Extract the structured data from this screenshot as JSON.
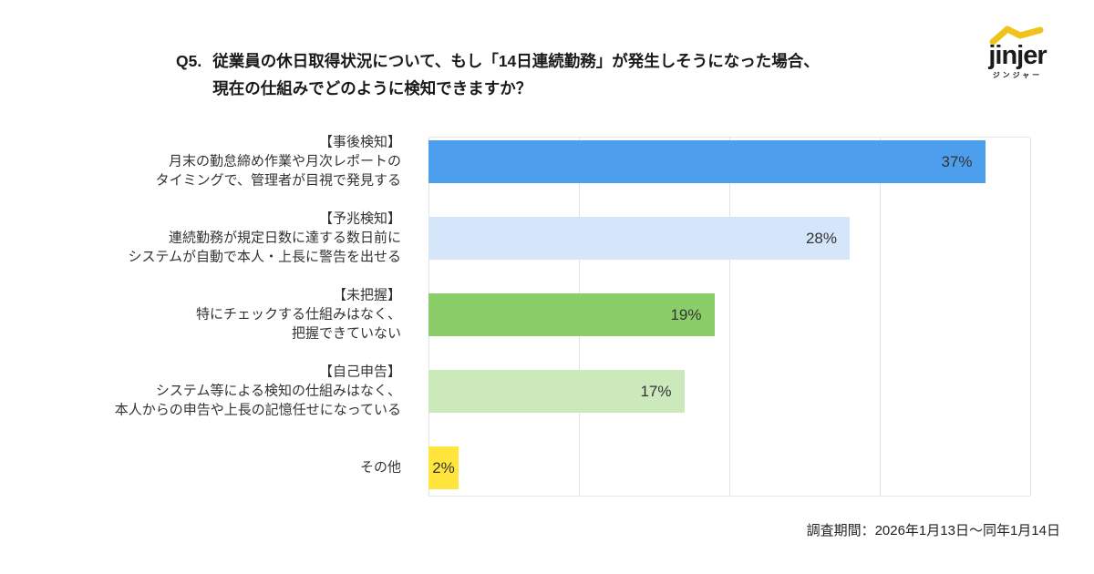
{
  "header": {
    "q_label": "Q5.",
    "title_line1": "従業員の休日取得状況について、もし「14日連続勤務」が発生しそうになった場合、",
    "title_line2": "現在の仕組みでどのように検知できますか？"
  },
  "logo": {
    "wordmark": "jinjer",
    "subtext": "ジンジャー",
    "accent_color": "#F0C31A"
  },
  "footer": {
    "survey_period": "調査期間：2026年1月13日～同年1月14日"
  },
  "chart_data": {
    "type": "bar",
    "orientation": "horizontal",
    "title": "Q5. 従業員の休日取得状況について、もし「14日連続勤務」が発生しそうになった場合、現在の仕組みでどのように検知できますか？",
    "xlabel": "",
    "ylabel": "",
    "xlim": [
      0,
      40
    ],
    "grid": true,
    "grid_interval_percent": 10,
    "legend": "none",
    "categories": [
      "【事後検知】月末の勤怠締め作業や月次レポートのタイミングで、管理者が目視で発見する",
      "【予兆検知】連続勤務が規定日数に達する数日前にシステムが自動で本人・上長に警告を出せる",
      "【未把握】特にチェックする仕組みはなく、把握できていない",
      "【自己申告】システム等による検知の仕組みはなく、本人からの申告や上長の記憶任せになっている",
      "その他"
    ],
    "values": [
      37,
      28,
      19,
      17,
      2
    ],
    "rows": [
      {
        "label_lines": [
          "【事後検知】",
          "月末の勤怠締め作業や月次レポートの",
          "タイミングで、管理者が目視で発見する"
        ],
        "value": 37,
        "value_label": "37%",
        "color": "#4E9EEE"
      },
      {
        "label_lines": [
          "【予兆検知】",
          "連続勤務が規定日数に達する数日前に",
          "システムが自動で本人・上長に警告を出せる"
        ],
        "value": 28,
        "value_label": "28%",
        "color": "#D5E6FA"
      },
      {
        "label_lines": [
          "【未把握】",
          "特にチェックする仕組みはなく、",
          "把握できていない"
        ],
        "value": 19,
        "value_label": "19%",
        "color": "#8BCD68"
      },
      {
        "label_lines": [
          "【自己申告】",
          "システム等による検知の仕組みはなく、",
          "本人からの申告や上長の記憶任せになっている"
        ],
        "value": 17,
        "value_label": "17%",
        "color": "#CBE9BA"
      },
      {
        "label_lines": [
          "その他"
        ],
        "value": 2,
        "value_label": "2%",
        "color": "#FFE53C"
      }
    ]
  }
}
